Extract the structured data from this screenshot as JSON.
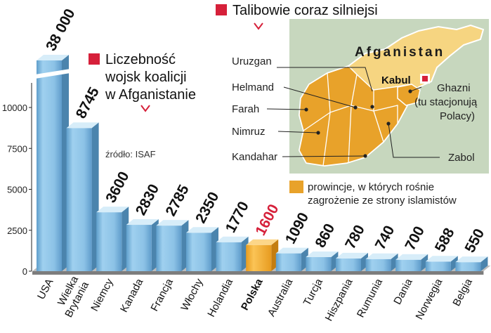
{
  "chart_data": {
    "type": "bar",
    "title": "Liczebność wojsk koalicji w Afganistanie",
    "source": "źródło: ISAF",
    "categories": [
      "USA",
      "Wielka Brytania",
      "Niemcy",
      "Kanada",
      "Francja",
      "Włochy",
      "Holandia",
      "Polska",
      "Australia",
      "Turcja",
      "Hiszpania",
      "Rumunia",
      "Dania",
      "Norwegia",
      "Belgia"
    ],
    "values": [
      38000,
      8745,
      3600,
      2830,
      2785,
      2350,
      1770,
      1600,
      1090,
      860,
      780,
      740,
      700,
      588,
      550
    ],
    "value_labels": [
      "38 000",
      "8745",
      "3600",
      "2830",
      "2785",
      "2350",
      "1770",
      "1600",
      "1090",
      "860",
      "780",
      "740",
      "700",
      "588",
      "550"
    ],
    "highlight_category": "Polska",
    "y_ticks": [
      "0",
      "2500",
      "5000",
      "7500",
      "10000"
    ],
    "ylim": [
      0,
      12000
    ],
    "y_axis_break": true,
    "colors": {
      "bar": "#8fc3e6",
      "bar_highlight": "#f5b233",
      "value_highlight": "#d6203a",
      "marker": "#d6203a"
    }
  },
  "map": {
    "title": "Talibowie coraz silniejsi",
    "country": "Afganistan",
    "capital": "Kabul",
    "provinces": [
      "Uruzgan",
      "Helmand",
      "Farah",
      "Nimruz",
      "Kandahar",
      "Ghazni",
      "Zabol"
    ],
    "ghazni_note_lines": [
      "(tu stacjonują",
      "Polacy)"
    ],
    "legend_lines": [
      "prowincje, w których rośnie",
      "zagrożenie ze strony islamistów"
    ],
    "colors": {
      "risk": "#e8a22a",
      "country": "#f6d581",
      "neighbors": "#c7d7be",
      "legend_swatch": "#e8a22a"
    }
  }
}
